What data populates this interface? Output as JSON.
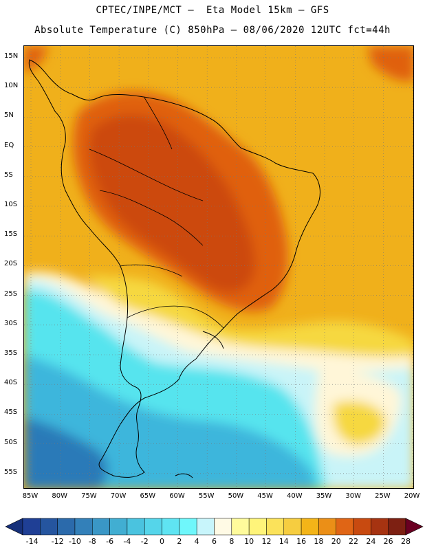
{
  "header": {
    "line1": "CPTEC/INPE/MCT –  Eta Model 15km – GFS",
    "line2": "Absolute Temperature (C) 850hPa – 08/06/2020 12UTC fct=44h"
  },
  "map": {
    "lat_labels": [
      "15N",
      "10N",
      "5N",
      "EQ",
      "5S",
      "10S",
      "15S",
      "20S",
      "25S",
      "30S",
      "35S",
      "40S",
      "45S",
      "50S",
      "55S"
    ],
    "lon_labels": [
      "85W",
      "80W",
      "75W",
      "70W",
      "65W",
      "60W",
      "55W",
      "50W",
      "45W",
      "40W",
      "35W",
      "30W",
      "25W",
      "20W"
    ],
    "colors": {
      "ocean_north": "#f0b01b",
      "land_hot": "#e06010",
      "land_hotter": "#cc4a08",
      "warm_band": "#f6d840",
      "pale_band": "#fff6d8",
      "cool_band": "#c9f4f8",
      "cyan_band": "#56e4ee",
      "blue_band": "#3cb6dc",
      "deep_blue": "#2c7ab8"
    }
  },
  "colorbar": {
    "labels": [
      "-14",
      "-12",
      "-10",
      "-8",
      "-6",
      "-4",
      "-2",
      "0",
      "2",
      "4",
      "6",
      "8",
      "10",
      "12",
      "14",
      "16",
      "18",
      "20",
      "22",
      "24",
      "26",
      "28"
    ],
    "colors": [
      "#1f3f95",
      "#25559f",
      "#2b6aab",
      "#3380b9",
      "#3a97c6",
      "#41aed2",
      "#4ac3df",
      "#55d5ea",
      "#5fe4f2",
      "#6ff7fb",
      "#c8f5fb",
      "#fffae5",
      "#fffb9c",
      "#fff47a",
      "#fbe25a",
      "#f6cd40",
      "#f3b418",
      "#eb8f17",
      "#e06515",
      "#c84a10",
      "#a63311",
      "#7d2012"
    ],
    "left_arrow_color": "#16307a",
    "right_arrow_color": "#6a0022"
  }
}
